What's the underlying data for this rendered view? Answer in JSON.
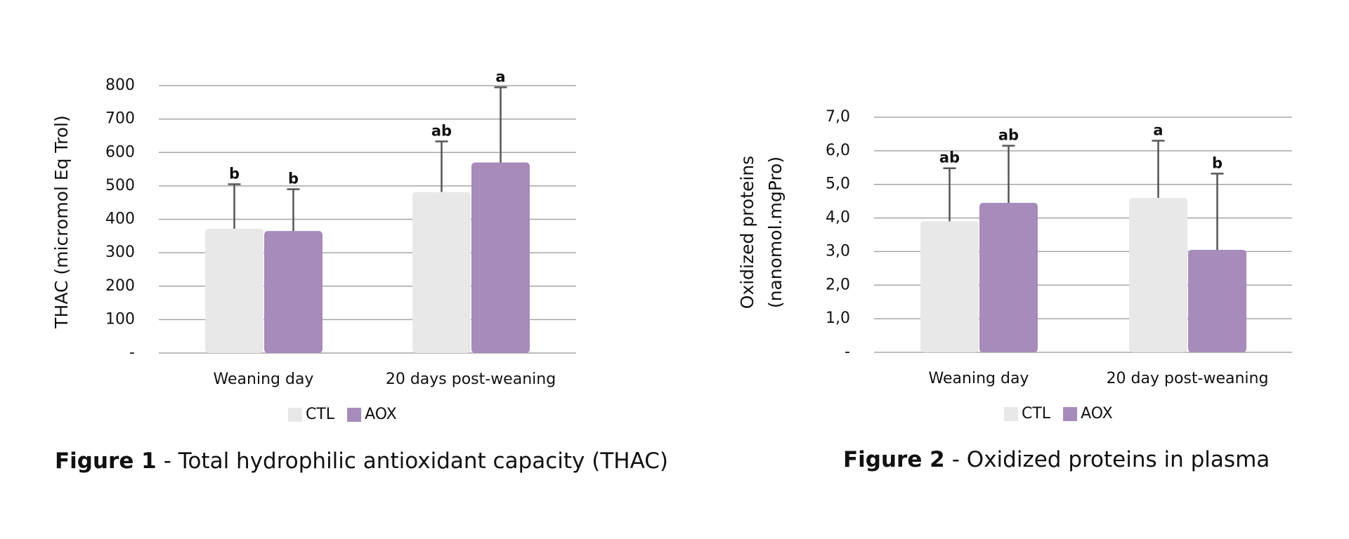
{
  "chart_data": [
    {
      "type": "bar",
      "figure_label": "Figure 1",
      "caption": "- Total hydrophilic antioxidant capacity (THAC)",
      "ylabel": [
        "THAC (micromol Eq Trol)"
      ],
      "categories": [
        "Weaning day",
        "20 days post-weaning"
      ],
      "series": [
        {
          "name": "CTL",
          "color": "#e8e8e8",
          "values": [
            372,
            482
          ],
          "errors": [
            133,
            151
          ],
          "annotations": [
            "b",
            "ab"
          ]
        },
        {
          "name": "AOX",
          "color": "#a78bba",
          "values": [
            365,
            570
          ],
          "errors": [
            125,
            225
          ],
          "annotations": [
            "b",
            "a"
          ]
        }
      ],
      "ylim": [
        0,
        800
      ],
      "yticks": [
        {
          "value": 0,
          "label": "-"
        },
        100,
        200,
        300,
        400,
        500,
        600,
        700,
        800
      ],
      "grid": true
    },
    {
      "type": "bar",
      "figure_label": "Figure 2",
      "caption": "- Oxidized proteins in plasma",
      "ylabel": [
        "Oxidized proteins",
        "(nanomol.mgPro)"
      ],
      "categories": [
        "Weaning day",
        "20 day post-weaning"
      ],
      "series": [
        {
          "name": "CTL",
          "color": "#e8e8e8",
          "values": [
            3.9,
            4.6
          ],
          "errors": [
            1.58,
            1.7
          ],
          "annotations": [
            "ab",
            "a"
          ]
        },
        {
          "name": "AOX",
          "color": "#a78bba",
          "values": [
            4.45,
            3.05
          ],
          "errors": [
            1.7,
            2.27
          ],
          "annotations": [
            "ab",
            "b"
          ]
        }
      ],
      "ylim": [
        0,
        7
      ],
      "yticks": [
        {
          "value": 0,
          "label": "-"
        },
        {
          "value": 1,
          "label": "1,0"
        },
        {
          "value": 2,
          "label": "2,0"
        },
        {
          "value": 3,
          "label": "3,0"
        },
        {
          "value": 4,
          "label": "4,0"
        },
        {
          "value": 5,
          "label": "5,0"
        },
        {
          "value": 6,
          "label": "6,0"
        },
        {
          "value": 7,
          "label": "7,0"
        }
      ],
      "grid": true
    }
  ]
}
